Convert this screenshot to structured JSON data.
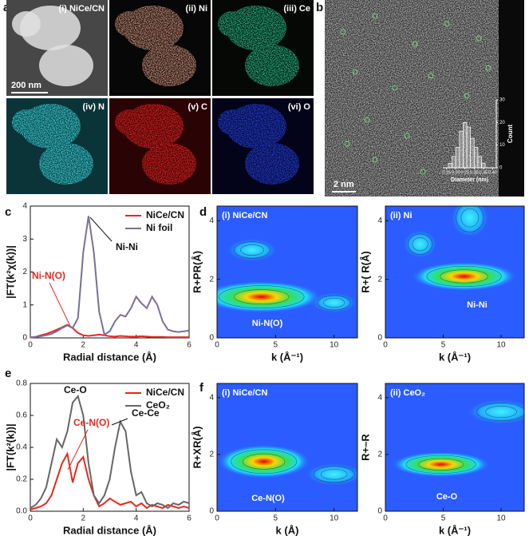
{
  "panel_a": {
    "label": "a",
    "maps": [
      "(i) NiCe/CN",
      "(ii) Ni",
      "(iii) Ce",
      "(iv) N",
      "(v) C",
      "(vi) O"
    ],
    "scale_bar": "200 nm"
  },
  "panel_b": {
    "label": "b",
    "scale_bar": "2 nm"
  },
  "chart_data": [
    {
      "type": "histogram",
      "bins": [
        0.16,
        0.18,
        0.2,
        0.22,
        0.24,
        0.26,
        0.28,
        0.3,
        0.32,
        0.34,
        0.36
      ],
      "values": [
        2,
        5,
        9,
        16,
        20,
        18,
        13,
        9,
        5,
        2
      ],
      "color": "#ffffff",
      "xlabel": "Diameter (nm)",
      "ylabel": "Count",
      "xlim": [
        0.13,
        0.42
      ],
      "xticks": [
        {
          "value": 0.15,
          "label": "0.15"
        },
        {
          "value": 0.2,
          "label": "0.20"
        },
        0.25,
        {
          "value": 0.3,
          "label": "0.30"
        },
        0.35,
        {
          "value": 0.4,
          "label": "0.40"
        }
      ],
      "ylim": [
        0,
        30
      ],
      "yticks": [
        0,
        10,
        20,
        30
      ]
    },
    {
      "type": "line",
      "label": "c",
      "xlabel": "Radial distance (Å)",
      "ylabel": "|FT(k²χ(k))|",
      "legend": "upper right",
      "x": [
        0,
        0.2,
        0.4,
        0.6,
        0.8,
        1.0,
        1.2,
        1.4,
        1.6,
        1.8,
        2.0,
        2.2,
        2.4,
        2.6,
        2.8,
        3.0,
        3.2,
        3.4,
        3.6,
        3.8,
        4.0,
        4.2,
        4.4,
        4.6,
        4.8,
        5.0,
        5.2,
        5.4,
        5.6,
        5.8,
        6.0
      ],
      "series": [
        {
          "name": "NiCe/CN",
          "color": "#e8281e",
          "values": [
            0.01,
            0.03,
            0.08,
            0.12,
            0.18,
            0.25,
            0.32,
            0.4,
            0.3,
            0.15,
            0.08,
            0.06,
            0.08,
            0.1,
            0.08,
            0.05,
            0.04,
            0.06,
            0.05,
            0.04,
            0.04,
            0.05,
            0.04,
            0.03,
            0.03,
            0.03,
            0.02,
            0.02,
            0.02,
            0.02,
            0.02
          ]
        },
        {
          "name": "Ni foil",
          "color": "#7a6f96",
          "values": [
            0.02,
            0.03,
            0.05,
            0.08,
            0.12,
            0.2,
            0.3,
            0.38,
            0.3,
            0.6,
            2.6,
            3.7,
            2.6,
            0.8,
            0.1,
            0.2,
            0.5,
            0.7,
            0.65,
            0.9,
            1.25,
            1.05,
            0.9,
            1.25,
            1.0,
            0.5,
            0.25,
            0.2,
            0.18,
            0.2,
            0.22
          ]
        }
      ],
      "xlim": [
        0,
        6
      ],
      "xticks": [
        0,
        2,
        4,
        6
      ],
      "ylim": [
        0,
        4
      ],
      "yticks": [
        0,
        1,
        2,
        3,
        4
      ],
      "annotations": [
        {
          "text": "Ni-Ni",
          "color": "#111111"
        },
        {
          "text": "Ni-N(O)",
          "color": "#e8281e"
        }
      ]
    },
    {
      "type": "contour",
      "label": "d",
      "title": "(i) NiCe/CN",
      "xlabel": "k (Å⁻¹)",
      "ylabel": "R+PR(Å)",
      "xlim": [
        0,
        12
      ],
      "xticks": [
        0,
        5,
        10
      ],
      "ylim": [
        0,
        4.5
      ],
      "yticks": [
        0,
        2,
        4
      ],
      "annotations": [
        {
          "text": "Ni-N(O)"
        }
      ]
    },
    {
      "type": "contour",
      "title": "(ii) Ni",
      "xlabel": "k  (Å⁻¹)",
      "ylabel": "R+( R(Å)",
      "xlim": [
        0,
        12
      ],
      "xticks": [
        0,
        5,
        10
      ],
      "ylim": [
        0,
        4.5
      ],
      "yticks": [
        0,
        2,
        4
      ],
      "annotations": [
        {
          "text": "Ni-Ni"
        }
      ]
    },
    {
      "type": "line",
      "label": "e",
      "xlabel": "Radial distance (Å)",
      "ylabel": "|FT(k²(k))|",
      "legend": "upper right",
      "x": [
        0,
        0.2,
        0.4,
        0.6,
        0.8,
        1.0,
        1.2,
        1.4,
        1.6,
        1.8,
        2.0,
        2.2,
        2.4,
        2.6,
        2.8,
        3.0,
        3.2,
        3.4,
        3.6,
        3.8,
        4.0,
        4.2,
        4.4,
        4.6,
        4.8,
        5.0,
        5.2,
        5.4,
        5.6,
        5.8,
        6.0
      ],
      "series": [
        {
          "name": "NiCe/CN",
          "color": "#e8281e",
          "values": [
            0.01,
            0.02,
            0.03,
            0.05,
            0.1,
            0.2,
            0.3,
            0.36,
            0.18,
            0.3,
            0.34,
            0.2,
            0.1,
            0.03,
            0.05,
            0.08,
            0.06,
            0.04,
            0.05,
            0.06,
            0.03,
            0.05,
            0.02,
            0.04,
            0.03,
            0.02,
            0.04,
            0.03,
            0.02,
            0.03,
            0.02
          ]
        },
        {
          "name": "CeO₂",
          "color": "#666666",
          "values": [
            0.02,
            0.04,
            0.08,
            0.15,
            0.3,
            0.45,
            0.4,
            0.5,
            0.68,
            0.72,
            0.6,
            0.3,
            0.1,
            0.05,
            0.1,
            0.2,
            0.4,
            0.56,
            0.5,
            0.25,
            0.1,
            0.12,
            0.05,
            0.03,
            0.05,
            0.04,
            0.02,
            0.05,
            0.04,
            0.06,
            0.05
          ]
        }
      ],
      "xlim": [
        0,
        6
      ],
      "xticks": [
        0,
        2,
        4,
        6
      ],
      "ylim": [
        0,
        0.8
      ],
      "yticks": [
        {
          "value": 0,
          "label": "0.0"
        },
        0.2,
        0.4,
        0.6,
        0.8
      ],
      "annotations": [
        {
          "text": "Ce-O",
          "color": "#111111"
        },
        {
          "text": "Ce-N(O)",
          "color": "#e8281e"
        },
        {
          "text": "Ce-Ce",
          "color": "#111111"
        }
      ]
    },
    {
      "type": "contour",
      "label": "f",
      "title": "(i) NiCe/CN",
      "xlabel": "k (Å)",
      "ylabel": "R+XR(Å)",
      "xlim": [
        0,
        12
      ],
      "xticks": [
        0,
        5,
        10
      ],
      "ylim": [
        0,
        4.5
      ],
      "yticks": [
        0,
        2,
        4
      ],
      "annotations": [
        {
          "text": "Ce-N(O)"
        }
      ]
    },
    {
      "type": "contour",
      "title": "(ii) CeO₂",
      "xlabel": "k (Å⁻¹)",
      "ylabel": "R+–R",
      "xlim": [
        0,
        12
      ],
      "xticks": [
        0,
        5,
        10
      ],
      "ylim": [
        0,
        4.5
      ],
      "yticks": [
        0,
        2,
        4
      ],
      "annotations": [
        {
          "text": "Ce-O"
        }
      ]
    }
  ]
}
